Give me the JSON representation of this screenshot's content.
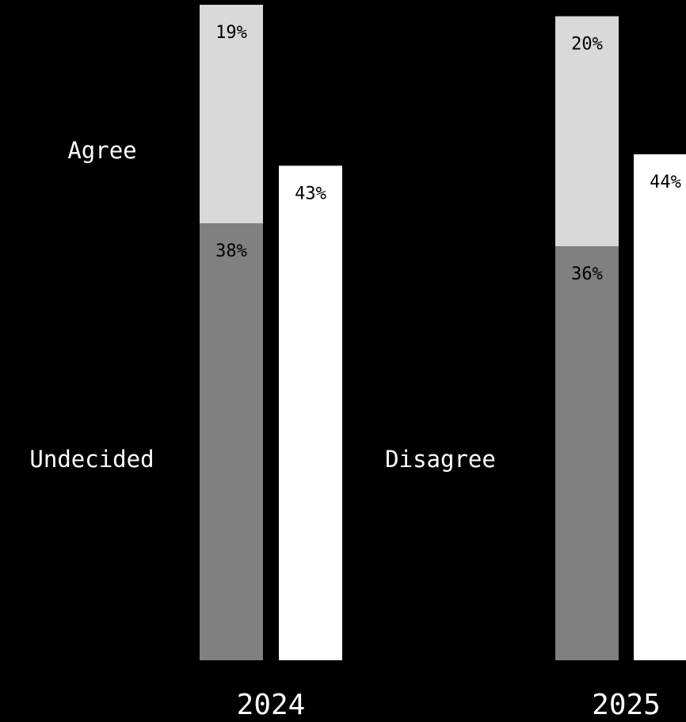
{
  "colors": {
    "background": "#000000",
    "agree": "#d9d9d9",
    "undecided": "#808080",
    "disagree": "#ffffff",
    "label_dark": "#000000"
  },
  "chart_data": {
    "type": "bar",
    "stacked": "partial",
    "categories": [
      "2024",
      "2025"
    ],
    "series": [
      {
        "name": "Agree",
        "values": [
          19,
          20
        ],
        "stack": "A",
        "color": "#d9d9d9",
        "labels": [
          "19%",
          "20%"
        ]
      },
      {
        "name": "Undecided",
        "values": [
          38,
          36
        ],
        "stack": "A",
        "color": "#808080",
        "labels": [
          "38%",
          "36%"
        ]
      },
      {
        "name": "Disagree",
        "values": [
          43,
          44
        ],
        "stack": "B",
        "color": "#ffffff",
        "labels": [
          "43%",
          "44%"
        ]
      }
    ],
    "ylim": [
      0,
      57
    ],
    "grid": false,
    "legend": "inline-left",
    "title": "",
    "xlabel": "",
    "ylabel": ""
  }
}
